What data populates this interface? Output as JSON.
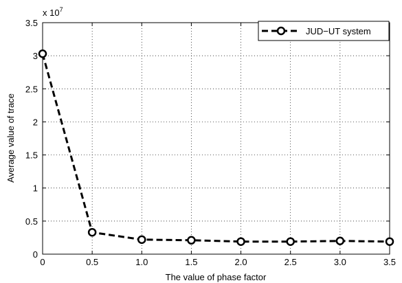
{
  "chart_data": {
    "type": "line",
    "title": "",
    "xlabel": "The value of phase factor",
    "ylabel": "Average value of trace",
    "y_exponent_base": "x 10",
    "y_exponent_power": "7",
    "xlim": [
      0,
      3.5
    ],
    "ylim": [
      0,
      3.5
    ],
    "x_ticks": [
      0,
      0.5,
      1.0,
      1.5,
      2.0,
      2.5,
      3.0,
      3.5
    ],
    "x_tick_labels": [
      "0",
      "0.5",
      "1.0",
      "1.5",
      "2.0",
      "2.5",
      "3.0",
      "3.5"
    ],
    "y_ticks": [
      0,
      0.5,
      1,
      1.5,
      2,
      2.5,
      3,
      3.5
    ],
    "y_tick_labels": [
      "0",
      "0.5",
      "1",
      "1.5",
      "2",
      "2.5",
      "3",
      "3.5"
    ],
    "grid": true,
    "legend_position": "top-right",
    "series": [
      {
        "name": "JUD−UT system",
        "color": "#000000",
        "line_style": "dashed",
        "marker": "circle",
        "x": [
          0,
          0.5,
          1.0,
          1.5,
          2.0,
          2.5,
          3.0,
          3.5
        ],
        "y": [
          3.03,
          0.33,
          0.22,
          0.21,
          0.19,
          0.19,
          0.2,
          0.19
        ]
      }
    ]
  }
}
